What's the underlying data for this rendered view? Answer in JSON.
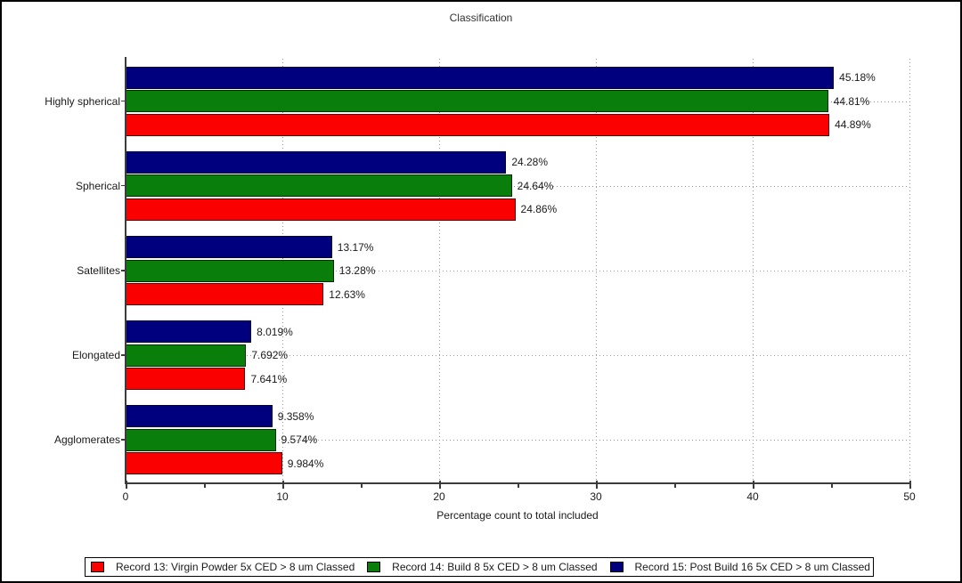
{
  "window": {
    "background": "#ffffff",
    "border_color": "#000000"
  },
  "chart_data": {
    "type": "bar",
    "orientation": "horizontal",
    "title": "Classification",
    "xlabel": "Percentage count to total included",
    "xlim": [
      0,
      50
    ],
    "xticks": [
      0,
      10,
      20,
      30,
      40,
      50
    ],
    "minor_xticks": [
      5,
      15,
      25,
      35,
      45
    ],
    "grid": "dotted",
    "legend_position": "bottom",
    "categories": [
      "Highly spherical",
      "Spherical",
      "Satellites",
      "Elongated",
      "Agglomerates"
    ],
    "series": [
      {
        "name": "Record 13: Virgin Powder 5x CED > 8 um Classed",
        "color": "#fa0000",
        "values": [
          44.89,
          24.86,
          12.63,
          7.641,
          9.984
        ],
        "labels": [
          "44.89%",
          "24.86%",
          "12.63%",
          "7.641%",
          "9.984%"
        ]
      },
      {
        "name": "Record 14: Build 8 5x CED > 8 um Classed",
        "color": "#0a7e0a",
        "values": [
          44.81,
          24.64,
          13.28,
          7.692,
          9.574
        ],
        "labels": [
          "44.81%",
          "24.64%",
          "13.28%",
          "7.692%",
          "9.574%"
        ]
      },
      {
        "name": "Record 15: Post Build 16 5x CED > 8 um Classed",
        "color": "#00007f",
        "values": [
          45.18,
          24.28,
          13.17,
          8.019,
          9.358
        ],
        "labels": [
          "45.18%",
          "24.28%",
          "13.17%",
          "8.019%",
          "9.358%"
        ]
      }
    ],
    "row_order_top_to_bottom": [
      2,
      1,
      0
    ]
  }
}
